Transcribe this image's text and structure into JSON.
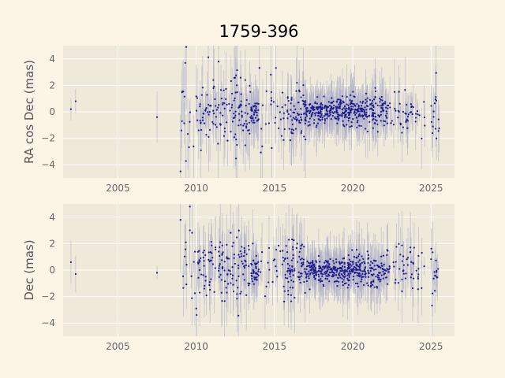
{
  "title": "1759-396",
  "colors": {
    "figure_bg": "#fcf5e6",
    "axes_bg": "#efe9da",
    "grid": "#ffffff",
    "point": "#1a1a8c",
    "errorbar": "#b0b0c8",
    "tick_text": "#666666",
    "label_text": "#555555"
  },
  "chart_data": [
    {
      "type": "scatter",
      "ylabel": "RA cos Dec (mas)",
      "xlim": [
        2001.5,
        2026.5
      ],
      "ylim": [
        -5,
        5
      ],
      "xticks": [
        2005,
        2010,
        2015,
        2020,
        2025
      ],
      "yticks": [
        -4,
        -2,
        0,
        2,
        4
      ],
      "grid": true,
      "series": [
        {
          "marker": "dot",
          "error_bars": true,
          "x": [],
          "y": []
        }
      ]
    },
    {
      "type": "scatter",
      "ylabel": "Dec (mas)",
      "xlim": [
        2001.5,
        2026.5
      ],
      "ylim": [
        -5,
        5
      ],
      "xticks": [
        2005,
        2010,
        2015,
        2020,
        2025
      ],
      "yticks": [
        -4,
        -2,
        0,
        2,
        4
      ],
      "grid": true,
      "series": [
        {
          "marker": "dot",
          "error_bars": true,
          "x": [],
          "y": []
        }
      ]
    }
  ]
}
